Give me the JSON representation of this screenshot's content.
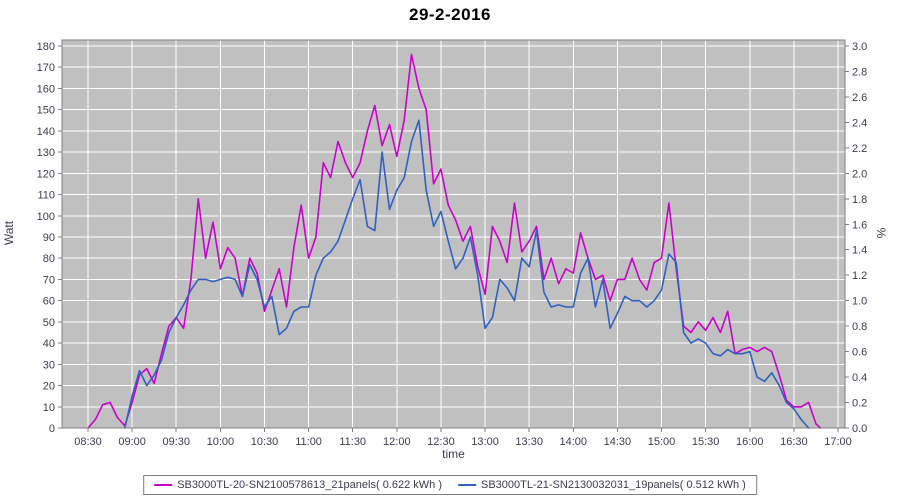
{
  "chart_data": {
    "type": "line",
    "title": "29-2-2016",
    "xlabel": "time",
    "ylabel_left": "Watt",
    "ylabel_right": "%",
    "plot_bg": "#c0c0c0",
    "grid_color": "#ffffff",
    "axis_color": "#7f7f7f",
    "tick_label_color": "#3c3c50",
    "x_tick_labels": [
      "08:30",
      "09:00",
      "09:30",
      "10:00",
      "10:30",
      "11:00",
      "11:30",
      "12:00",
      "12:30",
      "13:00",
      "13:30",
      "14:00",
      "14:30",
      "15:00",
      "15:30",
      "16:00",
      "16:30",
      "17:00"
    ],
    "x_tick_minutes": [
      510,
      540,
      570,
      600,
      630,
      660,
      690,
      720,
      750,
      780,
      810,
      840,
      870,
      900,
      930,
      960,
      990,
      1020
    ],
    "y_left": {
      "min": 0,
      "max": 180,
      "step": 10
    },
    "y_right": {
      "min": 0.0,
      "max": 3.0,
      "step": 0.2
    },
    "series": [
      {
        "name": "SB3000TL-20-SN2100578613_21panels( 0.622 kWh )",
        "color": "#cc00cc",
        "points": [
          [
            510,
            0
          ],
          [
            515,
            4
          ],
          [
            520,
            11
          ],
          [
            525,
            12
          ],
          [
            530,
            5
          ],
          [
            535,
            1
          ],
          [
            540,
            12
          ],
          [
            545,
            25
          ],
          [
            550,
            28
          ],
          [
            555,
            21
          ],
          [
            560,
            35
          ],
          [
            565,
            48
          ],
          [
            570,
            52
          ],
          [
            575,
            47
          ],
          [
            580,
            70
          ],
          [
            585,
            108
          ],
          [
            590,
            80
          ],
          [
            595,
            97
          ],
          [
            600,
            75
          ],
          [
            605,
            85
          ],
          [
            610,
            80
          ],
          [
            615,
            62
          ],
          [
            620,
            80
          ],
          [
            625,
            73
          ],
          [
            630,
            55
          ],
          [
            635,
            65
          ],
          [
            640,
            75
          ],
          [
            645,
            57
          ],
          [
            650,
            85
          ],
          [
            655,
            105
          ],
          [
            660,
            80
          ],
          [
            665,
            90
          ],
          [
            670,
            125
          ],
          [
            675,
            118
          ],
          [
            680,
            135
          ],
          [
            685,
            125
          ],
          [
            690,
            118
          ],
          [
            695,
            125
          ],
          [
            700,
            140
          ],
          [
            705,
            152
          ],
          [
            710,
            133
          ],
          [
            715,
            143
          ],
          [
            720,
            128
          ],
          [
            725,
            145
          ],
          [
            730,
            176
          ],
          [
            735,
            160
          ],
          [
            740,
            150
          ],
          [
            745,
            115
          ],
          [
            750,
            122
          ],
          [
            755,
            105
          ],
          [
            760,
            98
          ],
          [
            765,
            88
          ],
          [
            770,
            95
          ],
          [
            775,
            76
          ],
          [
            780,
            63
          ],
          [
            785,
            95
          ],
          [
            790,
            88
          ],
          [
            795,
            78
          ],
          [
            800,
            106
          ],
          [
            805,
            83
          ],
          [
            810,
            88
          ],
          [
            815,
            95
          ],
          [
            820,
            70
          ],
          [
            825,
            80
          ],
          [
            830,
            68
          ],
          [
            835,
            75
          ],
          [
            840,
            73
          ],
          [
            845,
            92
          ],
          [
            850,
            80
          ],
          [
            855,
            70
          ],
          [
            860,
            72
          ],
          [
            865,
            60
          ],
          [
            870,
            70
          ],
          [
            875,
            70
          ],
          [
            880,
            80
          ],
          [
            885,
            70
          ],
          [
            890,
            65
          ],
          [
            895,
            78
          ],
          [
            900,
            80
          ],
          [
            905,
            106
          ],
          [
            910,
            75
          ],
          [
            915,
            48
          ],
          [
            920,
            45
          ],
          [
            925,
            50
          ],
          [
            930,
            46
          ],
          [
            935,
            52
          ],
          [
            940,
            45
          ],
          [
            945,
            55
          ],
          [
            950,
            35
          ],
          [
            955,
            37
          ],
          [
            960,
            38
          ],
          [
            965,
            36
          ],
          [
            970,
            38
          ],
          [
            975,
            36
          ],
          [
            980,
            25
          ],
          [
            985,
            13
          ],
          [
            990,
            10
          ],
          [
            995,
            10
          ],
          [
            1000,
            12
          ],
          [
            1005,
            2
          ],
          [
            1008,
            0
          ]
        ]
      },
      {
        "name": "SB3000TL-21-SN2130032031_19panels( 0.512 kWh )",
        "color": "#3060c0",
        "points": [
          [
            535,
            0
          ],
          [
            540,
            15
          ],
          [
            545,
            27
          ],
          [
            550,
            20
          ],
          [
            555,
            25
          ],
          [
            560,
            32
          ],
          [
            565,
            45
          ],
          [
            570,
            52
          ],
          [
            575,
            58
          ],
          [
            580,
            65
          ],
          [
            585,
            70
          ],
          [
            590,
            70
          ],
          [
            595,
            69
          ],
          [
            600,
            70
          ],
          [
            605,
            71
          ],
          [
            610,
            70
          ],
          [
            615,
            62
          ],
          [
            620,
            77
          ],
          [
            625,
            70
          ],
          [
            630,
            57
          ],
          [
            635,
            62
          ],
          [
            640,
            44
          ],
          [
            645,
            47
          ],
          [
            650,
            55
          ],
          [
            655,
            57
          ],
          [
            660,
            57
          ],
          [
            665,
            72
          ],
          [
            670,
            80
          ],
          [
            675,
            83
          ],
          [
            680,
            88
          ],
          [
            685,
            98
          ],
          [
            690,
            108
          ],
          [
            695,
            117
          ],
          [
            700,
            95
          ],
          [
            705,
            93
          ],
          [
            710,
            130
          ],
          [
            715,
            103
          ],
          [
            720,
            112
          ],
          [
            725,
            118
          ],
          [
            730,
            135
          ],
          [
            735,
            145
          ],
          [
            740,
            112
          ],
          [
            745,
            95
          ],
          [
            750,
            102
          ],
          [
            755,
            88
          ],
          [
            760,
            75
          ],
          [
            765,
            80
          ],
          [
            770,
            90
          ],
          [
            775,
            72
          ],
          [
            780,
            47
          ],
          [
            785,
            52
          ],
          [
            790,
            70
          ],
          [
            795,
            66
          ],
          [
            800,
            60
          ],
          [
            805,
            80
          ],
          [
            810,
            76
          ],
          [
            815,
            93
          ],
          [
            820,
            64
          ],
          [
            825,
            57
          ],
          [
            830,
            58
          ],
          [
            835,
            57
          ],
          [
            840,
            57
          ],
          [
            845,
            73
          ],
          [
            850,
            80
          ],
          [
            855,
            57
          ],
          [
            860,
            70
          ],
          [
            865,
            47
          ],
          [
            870,
            54
          ],
          [
            875,
            62
          ],
          [
            880,
            60
          ],
          [
            885,
            60
          ],
          [
            890,
            57
          ],
          [
            895,
            60
          ],
          [
            900,
            65
          ],
          [
            905,
            82
          ],
          [
            910,
            78
          ],
          [
            915,
            45
          ],
          [
            920,
            40
          ],
          [
            925,
            42
          ],
          [
            930,
            40
          ],
          [
            935,
            35
          ],
          [
            940,
            34
          ],
          [
            945,
            37
          ],
          [
            950,
            35
          ],
          [
            955,
            35
          ],
          [
            960,
            36
          ],
          [
            965,
            24
          ],
          [
            970,
            22
          ],
          [
            975,
            26
          ],
          [
            980,
            20
          ],
          [
            985,
            12
          ],
          [
            990,
            9
          ],
          [
            995,
            4
          ],
          [
            1000,
            0
          ]
        ]
      }
    ]
  }
}
